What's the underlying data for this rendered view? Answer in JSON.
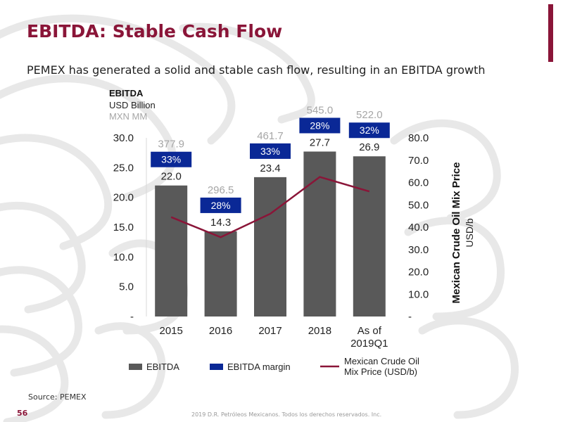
{
  "slide": {
    "title": "EBITDA: Stable Cash Flow",
    "subtitle": "PEMEX has generated a solid and stable cash flow, resulting in an EBITDA growth",
    "source": "Source: PEMEX",
    "page_number": "56",
    "footer": "2019 D.R. Petróleos Mexicanos. Todos los derechos reservados. Inc."
  },
  "colors": {
    "accent": "#8a1538",
    "bar": "#595959",
    "margin_box": "#0a2896",
    "line": "#8a1538",
    "mxn_text": "#a6a6a6"
  },
  "chart_data": {
    "type": "bar",
    "categories": [
      "2015",
      "2016",
      "2017",
      "2018",
      "As of 2019Q1"
    ],
    "category_lines": [
      [
        "2015"
      ],
      [
        "2016"
      ],
      [
        "2017"
      ],
      [
        "2018"
      ],
      [
        "As of",
        "2019Q1"
      ]
    ],
    "series": [
      {
        "name": "EBITDA",
        "type": "bar",
        "axis": "left",
        "values": [
          22.0,
          14.3,
          23.4,
          27.7,
          26.9
        ],
        "labels": [
          "22.0",
          "14.3",
          "23.4",
          "27.7",
          "26.9"
        ]
      },
      {
        "name": "EBITDA margin",
        "type": "label-box",
        "values": [
          "33%",
          "28%",
          "33%",
          "28%",
          "32%"
        ]
      },
      {
        "name": "MXN MM",
        "type": "label",
        "values": [
          377.9,
          296.5,
          461.7,
          545.0,
          522.0
        ],
        "labels": [
          "377.9",
          "296.5",
          "461.7",
          "545.0",
          "522.0"
        ]
      },
      {
        "name": "Mexican Crude Oil Mix Price (USD/b)",
        "type": "line",
        "axis": "right",
        "values": [
          44.5,
          35.5,
          46.0,
          62.5,
          56.0
        ]
      }
    ],
    "left_axis": {
      "title": "EBITDA",
      "unit": "USD Billion",
      "unit2": "MXN MM",
      "ylim": [
        0,
        30
      ],
      "ticks": [
        0,
        5,
        10,
        15,
        20,
        25,
        30
      ],
      "tick_labels": [
        "-",
        "5.0",
        "10.0",
        "15.0",
        "20.0",
        "25.0",
        "30.0"
      ]
    },
    "right_axis": {
      "title": "Mexican Crude Oil Mix Price",
      "unit": "USD/b",
      "ylim": [
        0,
        80
      ],
      "ticks": [
        0,
        10,
        20,
        30,
        40,
        50,
        60,
        70,
        80
      ],
      "tick_labels": [
        "-",
        "10.0",
        "20.0",
        "30.0",
        "40.0",
        "50.0",
        "60.0",
        "70.0",
        "80.0"
      ]
    },
    "legend": {
      "position": "bottom",
      "items": [
        {
          "label": "EBITDA",
          "kind": "bar"
        },
        {
          "label": "EBITDA margin",
          "kind": "box"
        },
        {
          "label": "Mexican Crude Oil Mix Price (USD/b)",
          "kind": "line",
          "lines": [
            "Mexican Crude Oil",
            "Mix Price (USD/b)"
          ]
        }
      ]
    }
  }
}
